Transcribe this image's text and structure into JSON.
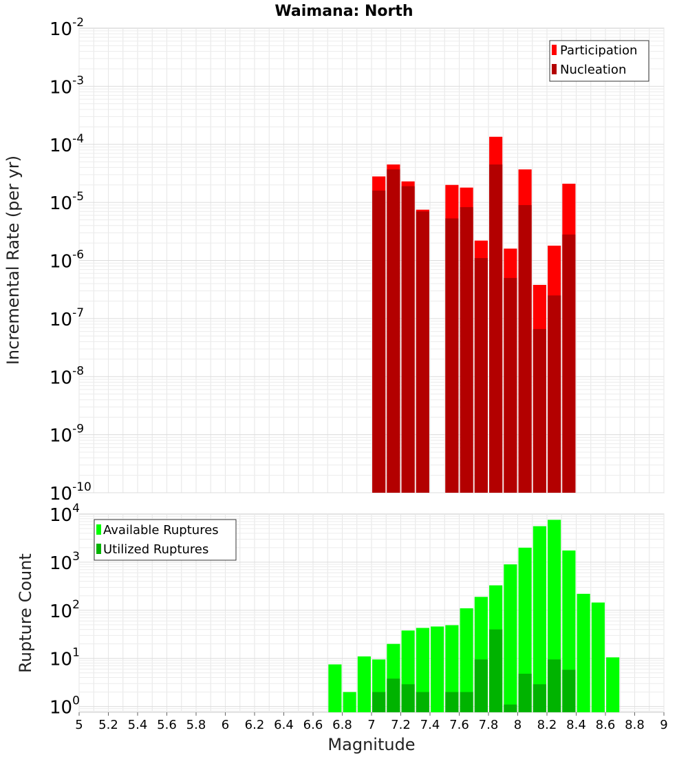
{
  "chart_data": [
    {
      "type": "bar",
      "title": "Waimana: North",
      "ylabel": "Incremental Rate (per yr)",
      "xlabel": "",
      "yscale": "log",
      "ylim_exp": [
        -10,
        -2
      ],
      "xlim": [
        5,
        9
      ],
      "grid": true,
      "legend_position": "top-right",
      "bar_width": 0.09,
      "series": [
        {
          "name": "Participation",
          "color": "#ff0000",
          "x": [
            7.05,
            7.15,
            7.25,
            7.35,
            7.55,
            7.65,
            7.75,
            7.85,
            7.95,
            8.05,
            8.15,
            8.25,
            8.35
          ],
          "values": [
            2.8e-05,
            4.5e-05,
            2.3e-05,
            7.5e-06,
            2e-05,
            1.8e-05,
            2.2e-06,
            0.000135,
            1.6e-06,
            3.7e-05,
            3.8e-07,
            1.8e-06,
            2.1e-05
          ]
        },
        {
          "name": "Nucleation",
          "color": "#b30000",
          "x": [
            7.05,
            7.15,
            7.25,
            7.35,
            7.55,
            7.65,
            7.75,
            7.85,
            7.95,
            8.05,
            8.15,
            8.25,
            8.35
          ],
          "values": [
            1.6e-05,
            3.7e-05,
            1.9e-05,
            7e-06,
            5.3e-06,
            8.3e-06,
            1.1e-06,
            4.5e-05,
            5e-07,
            9e-06,
            6.6e-08,
            2.5e-07,
            2.8e-06
          ]
        }
      ],
      "ytick_exponents": [
        -10,
        -9,
        -8,
        -7,
        -6,
        -5,
        -4,
        -3,
        -2
      ]
    },
    {
      "type": "bar",
      "title": "",
      "ylabel": "Rupture Count",
      "xlabel": "Magnitude",
      "yscale": "log",
      "ylim_exp": [
        -0.12,
        4
      ],
      "xlim": [
        5,
        9
      ],
      "grid": true,
      "legend_position": "top-left",
      "bar_width": 0.09,
      "series": [
        {
          "name": "Available Ruptures",
          "color": "#00ff00",
          "x": [
            6.75,
            6.85,
            6.95,
            7.05,
            7.15,
            7.25,
            7.35,
            7.45,
            7.55,
            7.65,
            7.75,
            7.85,
            7.95,
            8.05,
            8.15,
            8.25,
            8.35,
            8.45,
            8.55,
            8.65
          ],
          "values": [
            7.5,
            2,
            11,
            9.5,
            20,
            38,
            43,
            46,
            49,
            110,
            190,
            330,
            900,
            2000,
            5600,
            7600,
            1750,
            220,
            145,
            10.5
          ]
        },
        {
          "name": "Utilized Ruptures",
          "color": "#00b300",
          "x": [
            7.05,
            7.15,
            7.25,
            7.35,
            7.55,
            7.65,
            7.75,
            7.85,
            7.95,
            8.05,
            8.15,
            8.25,
            8.35
          ],
          "values": [
            2,
            3.8,
            2.9,
            2,
            2,
            2,
            9.5,
            40,
            1.1,
            4.8,
            2.9,
            9.5,
            5.8
          ]
        }
      ],
      "ytick_exponents": [
        0,
        1,
        2,
        3,
        4
      ],
      "xtick_labels": [
        "5",
        "5.2",
        "5.4",
        "5.6",
        "5.8",
        "6",
        "6.2",
        "6.4",
        "6.6",
        "6.8",
        "7",
        "7.2",
        "7.4",
        "7.6",
        "7.8",
        "8",
        "8.2",
        "8.4",
        "8.6",
        "8.8",
        "9"
      ]
    }
  ]
}
